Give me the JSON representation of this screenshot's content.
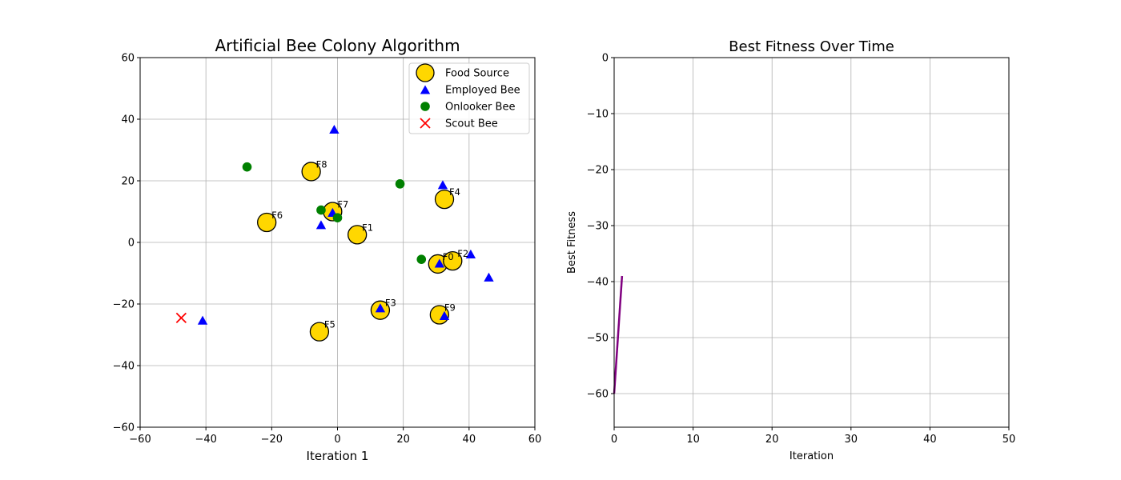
{
  "chart_data": [
    {
      "type": "scatter",
      "title": "Artificial Bee Colony Algorithm",
      "xlabel": "Iteration 1",
      "ylabel": "",
      "xlim": [
        -60,
        60
      ],
      "ylim": [
        -60,
        60
      ],
      "xticks": [
        -60,
        -40,
        -20,
        0,
        20,
        40,
        60
      ],
      "yticks": [
        -60,
        -40,
        -20,
        0,
        20,
        40,
        60
      ],
      "grid": true,
      "legend_position": "top-right",
      "series": [
        {
          "name": "Food Source",
          "marker": "circle",
          "color": "#FFD700",
          "edge_color": "#000000",
          "points": [
            {
              "label": "F0",
              "x": 30.5,
              "y": -7
            },
            {
              "label": "F1",
              "x": 6,
              "y": 2.5
            },
            {
              "label": "F2",
              "x": 35,
              "y": -6
            },
            {
              "label": "F3",
              "x": 13,
              "y": -22
            },
            {
              "label": "F4",
              "x": 32.5,
              "y": 14
            },
            {
              "label": "F5",
              "x": -5.5,
              "y": -29
            },
            {
              "label": "F6",
              "x": -21.5,
              "y": 6.5
            },
            {
              "label": "F7",
              "x": -1.5,
              "y": 10
            },
            {
              "label": "F8",
              "x": -8,
              "y": 23
            },
            {
              "label": "F9",
              "x": 31,
              "y": -23.5
            }
          ]
        },
        {
          "name": "Employed Bee",
          "marker": "triangle",
          "color": "#0000FF",
          "points": [
            {
              "x": -1,
              "y": 36.5
            },
            {
              "x": 32,
              "y": 18.5
            },
            {
              "x": -1.5,
              "y": 9.5
            },
            {
              "x": -5,
              "y": 5.5
            },
            {
              "x": 40.5,
              "y": -4
            },
            {
              "x": 31,
              "y": -7
            },
            {
              "x": 46,
              "y": -11.5
            },
            {
              "x": 13,
              "y": -21.5
            },
            {
              "x": 32.5,
              "y": -24
            },
            {
              "x": -41,
              "y": -25.5
            }
          ]
        },
        {
          "name": "Onlooker Bee",
          "marker": "circle",
          "color": "#008000",
          "points": [
            {
              "x": -27.5,
              "y": 24.5
            },
            {
              "x": 19,
              "y": 19
            },
            {
              "x": -5,
              "y": 10.5
            },
            {
              "x": 0,
              "y": 8
            },
            {
              "x": 25.5,
              "y": -5.5
            }
          ]
        },
        {
          "name": "Scout Bee",
          "marker": "x",
          "color": "#FF0000",
          "points": [
            {
              "x": -47.5,
              "y": -24.5
            }
          ]
        }
      ]
    },
    {
      "type": "line",
      "title": "Best Fitness Over Time",
      "xlabel": "Iteration",
      "ylabel": "Best Fitness",
      "xlim": [
        0,
        50
      ],
      "ylim": [
        -66,
        0
      ],
      "xticks": [
        0,
        10,
        20,
        30,
        40,
        50
      ],
      "yticks": [
        0,
        -10,
        -20,
        -30,
        -40,
        -50,
        -60
      ],
      "grid": true,
      "series": [
        {
          "color": "#800080",
          "x": [
            0,
            1
          ],
          "y": [
            -60,
            -39
          ]
        }
      ]
    }
  ]
}
